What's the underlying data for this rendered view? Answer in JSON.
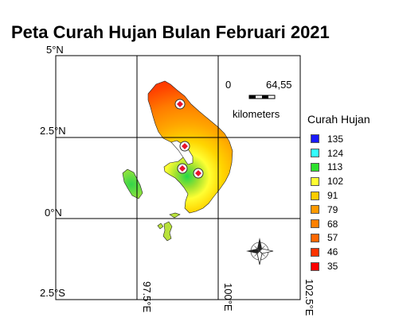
{
  "title": "Peta Curah Hujan Bulan Februari 2021",
  "lat_labels": [
    "5°N",
    "2.5°N",
    "0°N",
    "2.5°S"
  ],
  "lon_labels": [
    "97.5°E",
    "100°E",
    "102.5°E"
  ],
  "scale_bar": {
    "zero": "0",
    "distance": "64,55",
    "unit": "kilometers"
  },
  "legend": {
    "title": "Curah Hujan",
    "items": [
      {
        "label": "135",
        "color": "#1a1aff"
      },
      {
        "label": "124",
        "color": "#33ffff"
      },
      {
        "label": "113",
        "color": "#2ee02e"
      },
      {
        "label": "102",
        "color": "#ffff33"
      },
      {
        "label": "91",
        "color": "#ffcc00"
      },
      {
        "label": "79",
        "color": "#ff9900"
      },
      {
        "label": "68",
        "color": "#ff8000"
      },
      {
        "label": "57",
        "color": "#ff6600"
      },
      {
        "label": "46",
        "color": "#ff3300"
      },
      {
        "label": "35",
        "color": "#ff0000"
      }
    ]
  },
  "rain_stations": 4,
  "icons": {
    "north_arrow": "compass-rose-icon",
    "station": "rain-station-icon"
  }
}
